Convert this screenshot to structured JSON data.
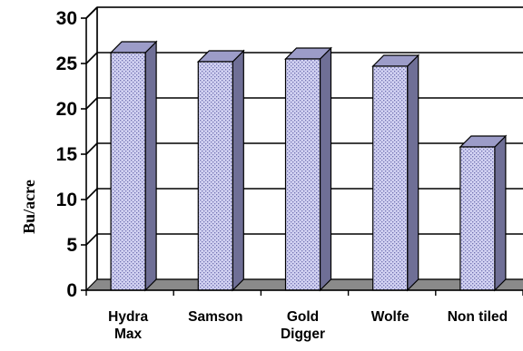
{
  "chart_data": {
    "type": "bar",
    "style": "3d",
    "title": "",
    "xlabel": "",
    "ylabel": "Bu/acre",
    "ylim": [
      0,
      30
    ],
    "yticks": [
      0,
      5,
      10,
      15,
      20,
      25,
      30
    ],
    "grid": true,
    "legend": "none",
    "categories": [
      [
        "Hydra",
        "Max"
      ],
      [
        "Samson"
      ],
      [
        "Gold",
        "Digger"
      ],
      [
        "Wolfe"
      ],
      [
        "Non tiled"
      ]
    ],
    "values": [
      26.2,
      25.2,
      25.5,
      24.7,
      15.8
    ],
    "colors": {
      "bar_front": "#c8c8ee",
      "bar_side": "#6f6f96",
      "bar_top": "#9c9cc8",
      "floor": "#8a8a8a"
    }
  }
}
